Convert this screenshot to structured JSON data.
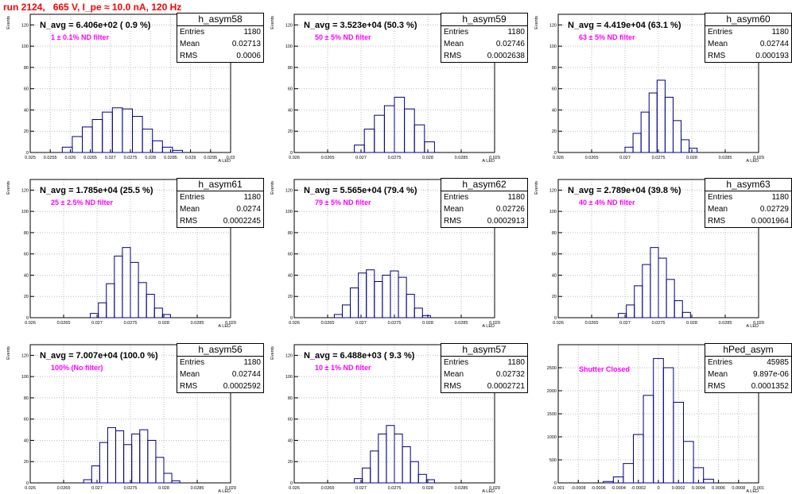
{
  "header": {
    "title": "run 2124,   665 V, I_pe ≈ 10.0 nA, 120 Hz"
  },
  "chart_data": [
    {
      "type": "histogram",
      "name": "h_asym58",
      "xlabel": "A LED",
      "ylabel": "Events",
      "xlim": [
        0.025,
        0.03
      ],
      "ylim": [
        0,
        130
      ],
      "xticks": [
        "0.025",
        "0.0255",
        "0.026",
        "0.0265",
        "0.027",
        "0.0275",
        "0.028",
        "0.0285",
        "0.029",
        "0.0295",
        "0.03"
      ],
      "yticks": [
        "0",
        "20",
        "40",
        "60",
        "80",
        "100",
        "120"
      ],
      "annotation": "N_avg = 6.406e+02 ( 0.9 %)",
      "filter_label": "1 ± 0.1% ND filter",
      "stats": {
        "entries": "1180",
        "mean": "0.02713",
        "rms": "0.0006"
      },
      "bin_edges": [
        0.0258,
        0.02605,
        0.0263,
        0.02655,
        0.0268,
        0.02705,
        0.0273,
        0.02755,
        0.0278,
        0.02805,
        0.0283,
        0.02855,
        0.0288
      ],
      "values": [
        5,
        15,
        24,
        31,
        38,
        42,
        41,
        34,
        22,
        11,
        5,
        2
      ]
    },
    {
      "type": "histogram",
      "name": "h_asym59",
      "xlabel": "A LED",
      "ylabel": "Events",
      "xlim": [
        0.026,
        0.029
      ],
      "ylim": [
        0,
        130
      ],
      "xticks": [
        "0.026",
        "0.0265",
        "0.027",
        "0.0275",
        "0.028",
        "0.0285",
        "0.029"
      ],
      "yticks": [
        "0",
        "20",
        "40",
        "60",
        "80",
        "100",
        "120"
      ],
      "annotation": "N_avg = 3.523e+04 (50.3 %)",
      "filter_label": "50 ± 5% ND filter",
      "stats": {
        "entries": "1180",
        "mean": "0.02746",
        "rms": "0.0002638"
      },
      "bin_edges": [
        0.0269,
        0.02705,
        0.0272,
        0.02735,
        0.0275,
        0.02765,
        0.0278,
        0.02795,
        0.0281
      ],
      "values": [
        7,
        22,
        35,
        44,
        52,
        41,
        26,
        10
      ]
    },
    {
      "type": "histogram",
      "name": "h_asym60",
      "xlabel": "A LED",
      "ylabel": "Events",
      "xlim": [
        0.026,
        0.029
      ],
      "ylim": [
        0,
        130
      ],
      "xticks": [
        "0.026",
        "0.0265",
        "0.027",
        "0.0275",
        "0.028",
        "0.0285",
        "0.029"
      ],
      "yticks": [
        "0",
        "20",
        "40",
        "60",
        "80",
        "100",
        "120"
      ],
      "annotation": "N_avg = 4.419e+04 (63.1 %)",
      "filter_label": "63 ± 5% ND filter",
      "stats": {
        "entries": "1180",
        "mean": "0.02744",
        "rms": "0.000193"
      },
      "bin_edges": [
        0.027,
        0.02712,
        0.02724,
        0.02736,
        0.02748,
        0.0276,
        0.02772,
        0.02784,
        0.02796,
        0.02808
      ],
      "values": [
        5,
        18,
        38,
        56,
        68,
        52,
        30,
        12,
        4
      ]
    },
    {
      "type": "histogram",
      "name": "h_asym61",
      "xlabel": "A LED",
      "ylabel": "Events",
      "xlim": [
        0.026,
        0.029
      ],
      "ylim": [
        0,
        130
      ],
      "xticks": [
        "0.026",
        "0.0265",
        "0.027",
        "0.0275",
        "0.028",
        "0.0285",
        "0.029"
      ],
      "yticks": [
        "0",
        "20",
        "40",
        "60",
        "80",
        "100",
        "120"
      ],
      "annotation": "N_avg = 1.785e+04 (25.5 %)",
      "filter_label": "25 ± 2.5% ND filter",
      "stats": {
        "entries": "1180",
        "mean": "0.0274",
        "rms": "0.0002245"
      },
      "bin_edges": [
        0.0269,
        0.02702,
        0.02714,
        0.02726,
        0.02738,
        0.0275,
        0.02762,
        0.02774,
        0.02786,
        0.02798,
        0.0281
      ],
      "values": [
        4,
        14,
        32,
        58,
        66,
        52,
        33,
        22,
        9,
        3
      ]
    },
    {
      "type": "histogram",
      "name": "h_asym62",
      "xlabel": "A LED",
      "ylabel": "Events",
      "xlim": [
        0.026,
        0.029
      ],
      "ylim": [
        0,
        130
      ],
      "xticks": [
        "0.026",
        "0.0265",
        "0.027",
        "0.0275",
        "0.028",
        "0.0285",
        "0.029"
      ],
      "yticks": [
        "0",
        "20",
        "40",
        "60",
        "80",
        "100",
        "120"
      ],
      "annotation": "N_avg = 5.565e+04 (79.4 %)",
      "filter_label": "79 ± 5% ND filter",
      "stats": {
        "entries": "1180",
        "mean": "0.02726",
        "rms": "0.0002913"
      },
      "bin_edges": [
        0.0266,
        0.02672,
        0.02684,
        0.02696,
        0.02708,
        0.0272,
        0.02732,
        0.02744,
        0.02756,
        0.02768,
        0.0278,
        0.02792,
        0.02804
      ],
      "values": [
        3,
        12,
        28,
        42,
        45,
        34,
        40,
        44,
        38,
        22,
        9,
        2
      ]
    },
    {
      "type": "histogram",
      "name": "h_asym63",
      "xlabel": "A LED",
      "ylabel": "Events",
      "xlim": [
        0.026,
        0.029
      ],
      "ylim": [
        0,
        130
      ],
      "xticks": [
        "0.026",
        "0.0265",
        "0.027",
        "0.0275",
        "0.028",
        "0.0285",
        "0.029"
      ],
      "yticks": [
        "0",
        "20",
        "40",
        "60",
        "80",
        "100",
        "120"
      ],
      "annotation": "N_avg = 2.789e+04 (39.8 %)",
      "filter_label": "40 ± 4% ND filter",
      "stats": {
        "entries": "1180",
        "mean": "0.02729",
        "rms": "0.0001964"
      },
      "bin_edges": [
        0.0269,
        0.02702,
        0.02714,
        0.02726,
        0.02738,
        0.0275,
        0.02762,
        0.02774,
        0.02786,
        0.02798
      ],
      "values": [
        4,
        12,
        30,
        50,
        66,
        56,
        36,
        16,
        5
      ]
    },
    {
      "type": "histogram",
      "name": "h_asym56",
      "xlabel": "A LED",
      "ylabel": "Events",
      "xlim": [
        0.026,
        0.029
      ],
      "ylim": [
        0,
        130
      ],
      "xticks": [
        "0.026",
        "0.0265",
        "0.027",
        "0.0275",
        "0.028",
        "0.0285",
        "0.029"
      ],
      "yticks": [
        "0",
        "20",
        "40",
        "60",
        "80",
        "100",
        "120"
      ],
      "annotation": "N_avg = 7.007e+04 (100.0 %)",
      "filter_label": "100% (No filter)",
      "stats": {
        "entries": "1180",
        "mean": "0.02744",
        "rms": "0.0002592"
      },
      "bin_edges": [
        0.0268,
        0.02692,
        0.02704,
        0.02716,
        0.02728,
        0.0274,
        0.02752,
        0.02764,
        0.02776,
        0.02788,
        0.028,
        0.02812,
        0.02824
      ],
      "values": [
        3,
        16,
        38,
        52,
        49,
        36,
        46,
        50,
        40,
        24,
        9,
        2
      ]
    },
    {
      "type": "histogram",
      "name": "h_asym57",
      "xlabel": "A LED",
      "ylabel": "Events",
      "xlim": [
        0.026,
        0.029
      ],
      "ylim": [
        0,
        130
      ],
      "xticks": [
        "0.026",
        "0.0265",
        "0.027",
        "0.0275",
        "0.028",
        "0.0285",
        "0.029"
      ],
      "yticks": [
        "0",
        "20",
        "40",
        "60",
        "80",
        "100",
        "120"
      ],
      "annotation": "N_avg = 6.488e+03 ( 9.3 %)",
      "filter_label": "10 ± 1% ND filter",
      "stats": {
        "entries": "1180",
        "mean": "0.02732",
        "rms": "0.0002721"
      },
      "bin_edges": [
        0.0269,
        0.02702,
        0.02714,
        0.02726,
        0.02738,
        0.0275,
        0.02762,
        0.02774,
        0.02786,
        0.02798,
        0.0281
      ],
      "values": [
        4,
        14,
        30,
        46,
        54,
        46,
        34,
        20,
        8,
        3
      ]
    },
    {
      "type": "histogram",
      "name": "hPed_asym",
      "xlabel": "A LED",
      "ylabel": "",
      "xlim": [
        -0.001,
        0.001
      ],
      "ylim": [
        0,
        3000
      ],
      "xticks": [
        "-0.001",
        "-0.0008",
        "-0.0006",
        "-0.0004",
        "-0.0002",
        "0",
        "0.0002",
        "0.0004",
        "0.0006",
        "0.0008",
        "0.001"
      ],
      "yticks": [
        "0",
        "500",
        "1000",
        "1500",
        "2000",
        "2500"
      ],
      "annotation": "",
      "filter_label": "Shutter Closed",
      "stats": {
        "entries": "45985",
        "mean": "9.897e-06",
        "rms": "0.0001352"
      },
      "bin_edges": [
        -0.00055,
        -0.00045,
        -0.00035,
        -0.00025,
        -0.00015,
        -5e-05,
        5e-05,
        0.00015,
        0.00025,
        0.00035,
        0.00045,
        0.00055
      ],
      "values": [
        30,
        130,
        420,
        1050,
        1900,
        2700,
        2500,
        1750,
        900,
        330,
        80
      ]
    }
  ]
}
